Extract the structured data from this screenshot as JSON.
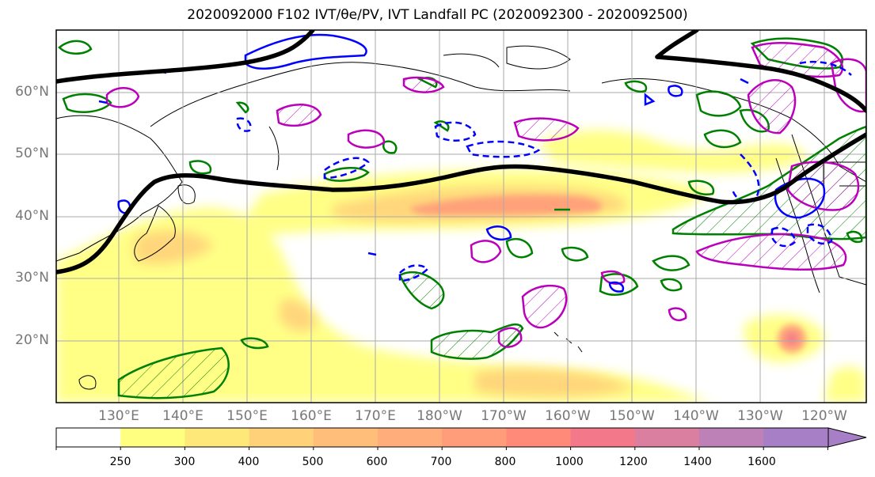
{
  "title": "2020092000 F102 IVT/θe/PV, IVT Landfall PC (2020092300 - 2020092500)",
  "map": {
    "lat_labels": [
      "60°N",
      "50°N",
      "40°N",
      "30°N",
      "20°N"
    ],
    "lon_labels": [
      "130°E",
      "140°E",
      "150°E",
      "160°E",
      "170°E",
      "180°W",
      "170°W",
      "160°W",
      "150°W",
      "140°W",
      "130°W",
      "120°W"
    ]
  },
  "colorbar": {
    "labels": [
      "250",
      "300",
      "400",
      "500",
      "600",
      "700",
      "800",
      "1000",
      "1200",
      "1400",
      "1600"
    ],
    "colors": [
      "#ffffff",
      "#ffff80",
      "#ffe87a",
      "#ffd27a",
      "#ffbf7a",
      "#ffad7a",
      "#ff9c7a",
      "#ff8a7a",
      "#f2788a",
      "#db7fa0",
      "#bd81b8",
      "#a77fc6"
    ]
  },
  "contour_colors": {
    "thick_black": "#000000",
    "blue": "#0000ff",
    "green": "#008000",
    "magenta": "#bb00bb"
  }
}
